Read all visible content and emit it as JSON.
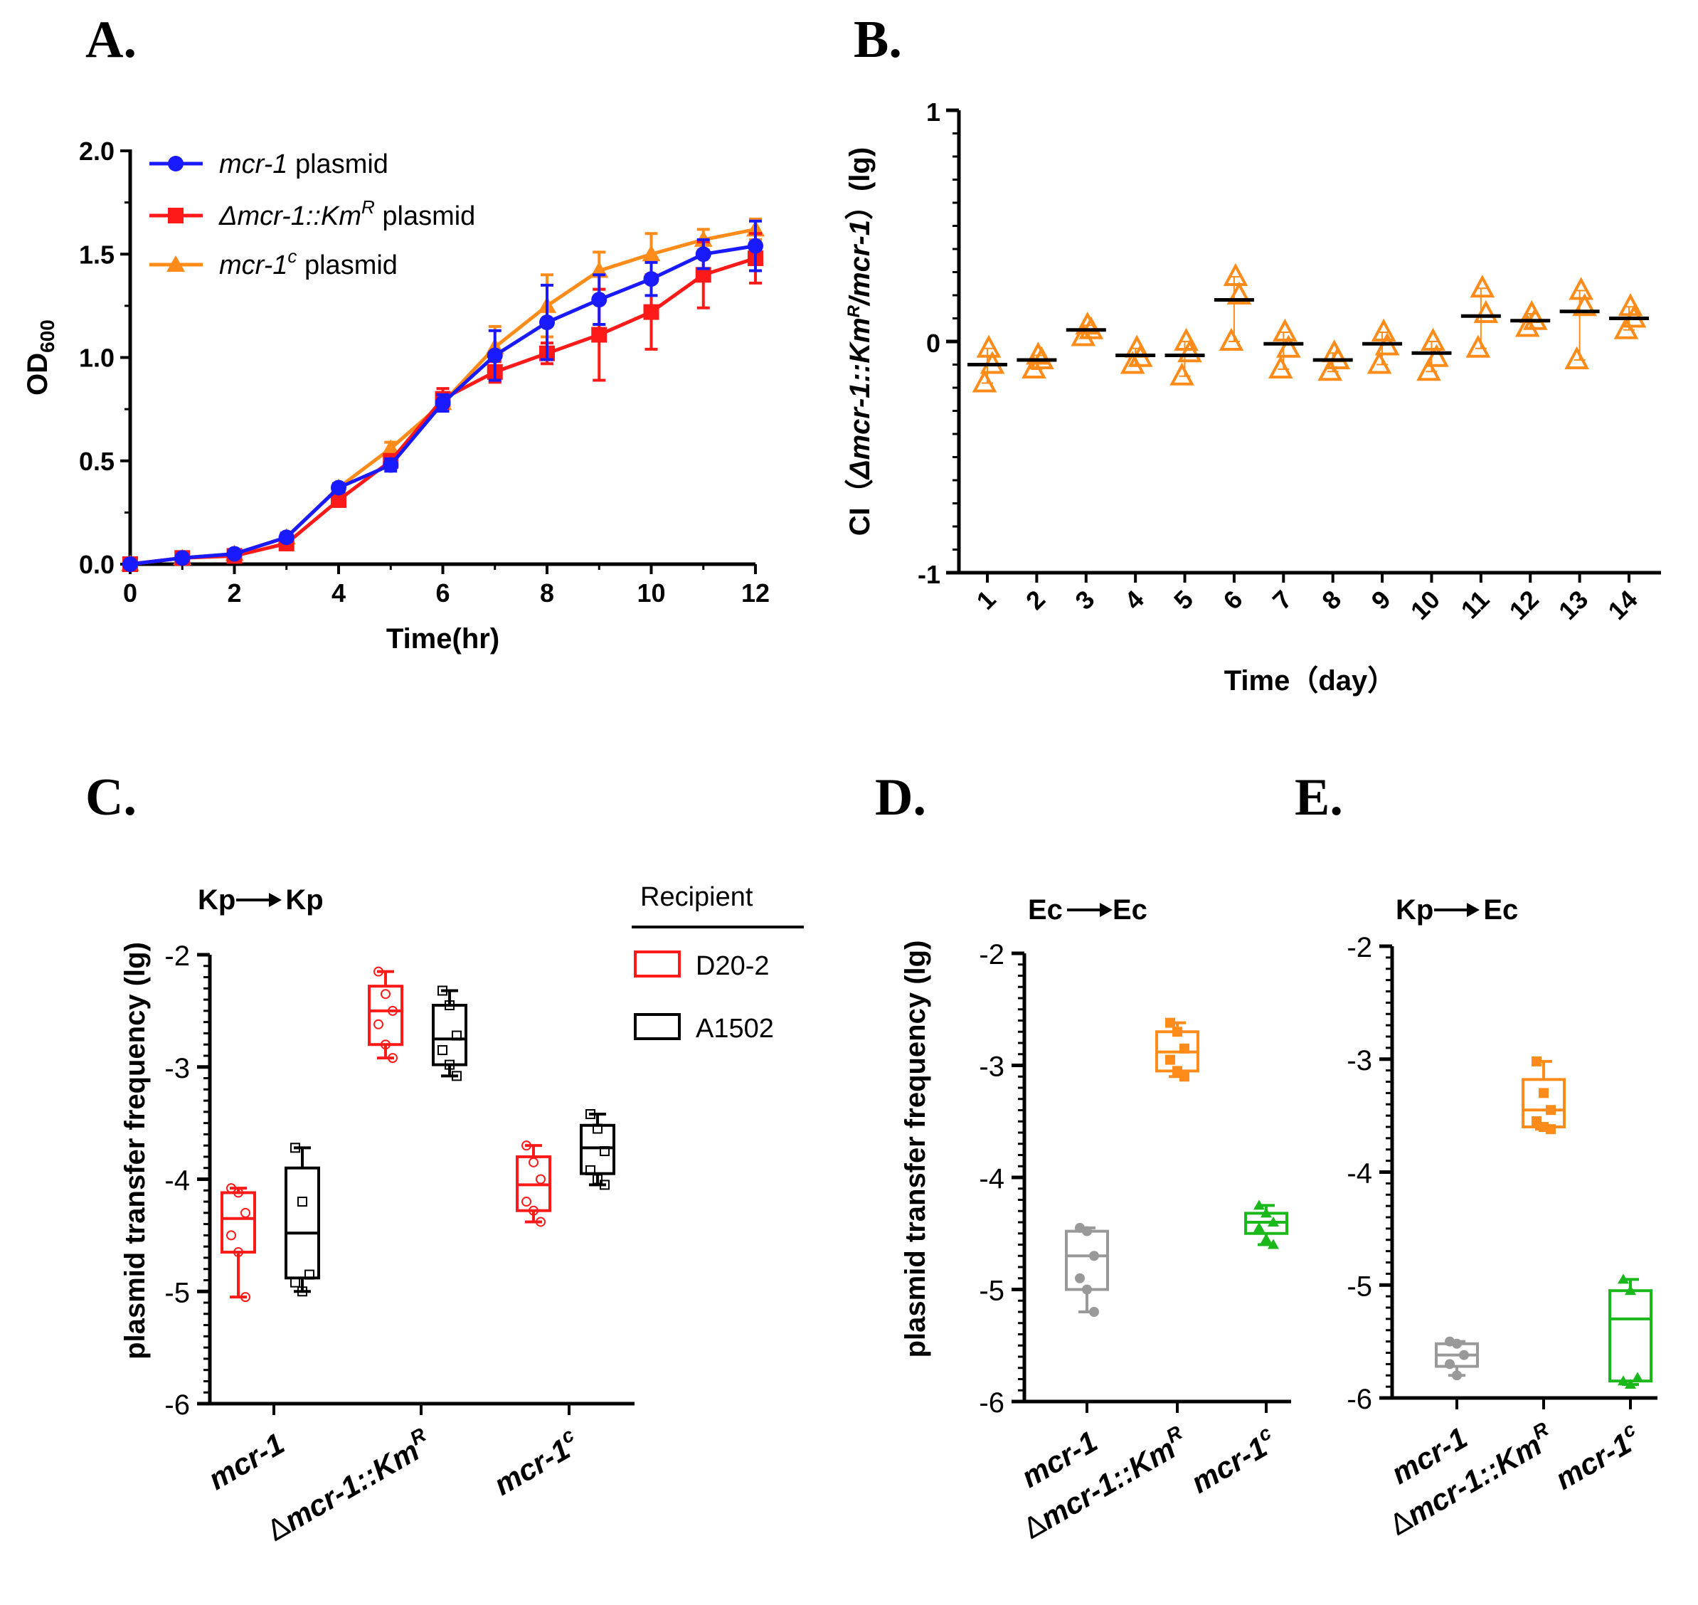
{
  "panels": {
    "A": {
      "letter": "A.",
      "legend": [
        {
          "name": "mcr-1",
          "suffix": " plasmid",
          "sup": ""
        },
        {
          "name": "Δmcr-1::Km",
          "suffix": " plasmid",
          "sup": "R"
        },
        {
          "name": "mcr-1",
          "suffix": " plasmid",
          "sup": "c"
        }
      ]
    },
    "B": {
      "letter": "B."
    },
    "C": {
      "letter": "C.",
      "subtitle_from": "Kp",
      "subtitle_to": "Kp",
      "legend_title": "Recipient",
      "legend": [
        "D20-2",
        "A1502"
      ]
    },
    "D": {
      "letter": "D.",
      "subtitle_from": "Ec",
      "subtitle_to": "Ec"
    },
    "E": {
      "letter": "E.",
      "subtitle_from": "Kp",
      "subtitle_to": "Ec"
    }
  },
  "colors": {
    "blue": "#1a1aff",
    "red": "#ff1a1a",
    "orange": "#ff8c1a",
    "black": "#000000",
    "grey": "#999999",
    "green": "#1ab81a"
  },
  "chart_data": [
    {
      "id": "A",
      "type": "line",
      "xlabel": "Time(hr)",
      "ylabel": "OD",
      "ylabel_sub": "600",
      "xlim": [
        0,
        12
      ],
      "ylim": [
        0,
        2.0
      ],
      "xticks": [
        0,
        2,
        4,
        6,
        8,
        10,
        12
      ],
      "yticks": [
        "0.0",
        "0.5",
        "1.0",
        "1.5",
        "2.0"
      ],
      "x": [
        0,
        1,
        2,
        3,
        4,
        5,
        6,
        7,
        8,
        9,
        10,
        11,
        12
      ],
      "series": [
        {
          "name": "mcr-1 plasmid",
          "color": "#1a1aff",
          "marker": "circle",
          "values": [
            0.0,
            0.03,
            0.05,
            0.13,
            0.37,
            0.48,
            0.78,
            1.01,
            1.17,
            1.28,
            1.38,
            1.5,
            1.54
          ],
          "err": [
            0.01,
            0.01,
            0.01,
            0.02,
            0.02,
            0.03,
            0.04,
            0.12,
            0.18,
            0.12,
            0.08,
            0.07,
            0.12
          ]
        },
        {
          "name": "Δmcr-1::KmR plasmid",
          "color": "#ff1a1a",
          "marker": "square",
          "values": [
            0.0,
            0.03,
            0.04,
            0.1,
            0.31,
            0.5,
            0.8,
            0.93,
            1.02,
            1.11,
            1.22,
            1.4,
            1.48
          ],
          "err": [
            0.01,
            0.01,
            0.01,
            0.02,
            0.02,
            0.03,
            0.05,
            0.05,
            0.05,
            0.22,
            0.18,
            0.16,
            0.12
          ]
        },
        {
          "name": "mcr-1c plasmid",
          "color": "#ff8c1a",
          "marker": "triangle",
          "values": [
            0.0,
            0.03,
            0.05,
            0.13,
            0.37,
            0.56,
            0.78,
            1.05,
            1.25,
            1.42,
            1.5,
            1.57,
            1.62
          ],
          "err": [
            0.01,
            0.01,
            0.01,
            0.02,
            0.02,
            0.03,
            0.04,
            0.1,
            0.15,
            0.09,
            0.1,
            0.05,
            0.05
          ]
        }
      ]
    },
    {
      "id": "B",
      "type": "scatter",
      "xlabel": "Time（day）",
      "ylabel_pre": "CI（",
      "ylabel_a": "Δmcr-1::Km",
      "ylabel_sup": "R",
      "ylabel_b": "/mcr-1",
      "ylabel_post": "）(lg)",
      "ylim": [
        -1,
        1
      ],
      "yticks": [
        "-1",
        "0",
        "1"
      ],
      "categories": [
        "1",
        "2",
        "3",
        "4",
        "5",
        "6",
        "7",
        "8",
        "9",
        "10",
        "11",
        "12",
        "13",
        "14"
      ],
      "points": [
        [
          -0.03,
          -0.1,
          -0.18
        ],
        [
          -0.06,
          -0.08,
          -0.12
        ],
        [
          0.07,
          0.05,
          0.02
        ],
        [
          -0.03,
          -0.07,
          -0.1
        ],
        [
          0.0,
          -0.05,
          -0.15
        ],
        [
          0.28,
          0.2,
          0.0
        ],
        [
          0.04,
          -0.03,
          -0.12
        ],
        [
          -0.05,
          -0.08,
          -0.13
        ],
        [
          0.04,
          -0.02,
          -0.1
        ],
        [
          0.0,
          -0.07,
          -0.13
        ],
        [
          0.23,
          0.12,
          -0.03
        ],
        [
          0.12,
          0.09,
          0.06
        ],
        [
          0.22,
          0.15,
          -0.08
        ],
        [
          0.15,
          0.1,
          0.05
        ]
      ],
      "means": [
        -0.1,
        -0.08,
        0.05,
        -0.06,
        -0.06,
        0.18,
        -0.01,
        -0.08,
        -0.01,
        -0.05,
        0.11,
        0.09,
        0.13,
        0.1
      ]
    },
    {
      "id": "C",
      "type": "box",
      "ylabel": "plasmid transfer frequency (lg)",
      "ylim": [
        -6,
        -2
      ],
      "yticks": [
        "-2",
        "-3",
        "-4",
        "-5",
        "-6"
      ],
      "categories": [
        {
          "pre": "",
          "name": "mcr-1",
          "sup": ""
        },
        {
          "pre": "Δ",
          "name": "mcr-1::Km",
          "sup": "R"
        },
        {
          "pre": "",
          "name": "mcr-1",
          "sup": "c"
        }
      ],
      "groups": [
        {
          "recipient": "D20-2",
          "color": "#ff1a1a",
          "boxes": [
            {
              "min": -5.05,
              "q1": -4.65,
              "med": -4.35,
              "q3": -4.12,
              "max": -4.08,
              "pts": [
                -4.08,
                -4.12,
                -4.3,
                -4.5,
                -4.65,
                -5.05
              ]
            },
            {
              "min": -2.92,
              "q1": -2.8,
              "med": -2.5,
              "q3": -2.28,
              "max": -2.15,
              "pts": [
                -2.15,
                -2.35,
                -2.5,
                -2.62,
                -2.8,
                -2.92
              ]
            },
            {
              "min": -4.38,
              "q1": -4.28,
              "med": -4.05,
              "q3": -3.8,
              "max": -3.7,
              "pts": [
                -3.7,
                -3.85,
                -4.0,
                -4.2,
                -4.28,
                -4.38
              ]
            }
          ]
        },
        {
          "recipient": "A1502",
          "color": "#000000",
          "boxes": [
            {
              "min": -5.0,
              "q1": -4.88,
              "med": -4.48,
              "q3": -3.9,
              "max": -3.72,
              "pts": [
                -3.72,
                -4.2,
                -4.85,
                -4.92,
                -5.0
              ]
            },
            {
              "min": -3.08,
              "q1": -2.98,
              "med": -2.75,
              "q3": -2.45,
              "max": -2.32,
              "pts": [
                -2.32,
                -2.45,
                -2.72,
                -2.85,
                -2.98,
                -3.08
              ]
            },
            {
              "min": -4.05,
              "q1": -3.95,
              "med": -3.72,
              "q3": -3.52,
              "max": -3.42,
              "pts": [
                -3.42,
                -3.55,
                -3.75,
                -3.92,
                -4.0,
                -4.05
              ]
            }
          ]
        }
      ]
    },
    {
      "id": "D",
      "type": "box",
      "ylabel": "plasmid transfer frequency (lg)",
      "ylim": [
        -6,
        -2
      ],
      "yticks": [
        "-2",
        "-3",
        "-4",
        "-5",
        "-6"
      ],
      "categories": [
        {
          "pre": "",
          "name": "mcr-1",
          "sup": ""
        },
        {
          "pre": "Δ",
          "name": "mcr-1::Km",
          "sup": "R"
        },
        {
          "pre": "",
          "name": "mcr-1",
          "sup": "c"
        }
      ],
      "boxes": [
        {
          "color": "#999999",
          "min": -5.2,
          "q1": -5.0,
          "med": -4.7,
          "q3": -4.48,
          "max": -4.45,
          "pts": [
            -4.45,
            -4.48,
            -4.7,
            -4.9,
            -5.0,
            -5.2
          ]
        },
        {
          "color": "#ff8c1a",
          "min": -3.1,
          "q1": -3.05,
          "med": -2.88,
          "q3": -2.7,
          "max": -2.62,
          "pts": [
            -2.62,
            -2.7,
            -2.85,
            -2.95,
            -3.05,
            -3.1
          ]
        },
        {
          "color": "#1ab81a",
          "min": -4.6,
          "q1": -4.5,
          "med": -4.4,
          "q3": -4.32,
          "max": -4.25,
          "pts": [
            -4.25,
            -4.32,
            -4.4,
            -4.45,
            -4.55,
            -4.6
          ]
        }
      ]
    },
    {
      "id": "E",
      "type": "box",
      "ylabel": "",
      "ylim": [
        -6,
        -2
      ],
      "yticks": [
        "-2",
        "-3",
        "-4",
        "-5",
        "-6"
      ],
      "categories": [
        {
          "pre": "",
          "name": "mcr-1",
          "sup": ""
        },
        {
          "pre": "Δ",
          "name": "mcr-1::Km",
          "sup": "R"
        },
        {
          "pre": "",
          "name": "mcr-1",
          "sup": "c"
        }
      ],
      "boxes": [
        {
          "color": "#999999",
          "min": -5.8,
          "q1": -5.72,
          "med": -5.62,
          "q3": -5.52,
          "max": -5.5,
          "pts": [
            -5.5,
            -5.52,
            -5.62,
            -5.7,
            -5.8
          ]
        },
        {
          "color": "#ff8c1a",
          "min": -3.62,
          "q1": -3.6,
          "med": -3.45,
          "q3": -3.18,
          "max": -3.02,
          "pts": [
            -3.02,
            -3.3,
            -3.45,
            -3.55,
            -3.6,
            -3.62
          ]
        },
        {
          "color": "#1ab81a",
          "min": -5.88,
          "q1": -5.85,
          "med": -5.3,
          "q3": -5.05,
          "max": -4.95,
          "pts": [
            -4.95,
            -5.05,
            -5.82,
            -5.85,
            -5.88
          ]
        }
      ]
    }
  ]
}
